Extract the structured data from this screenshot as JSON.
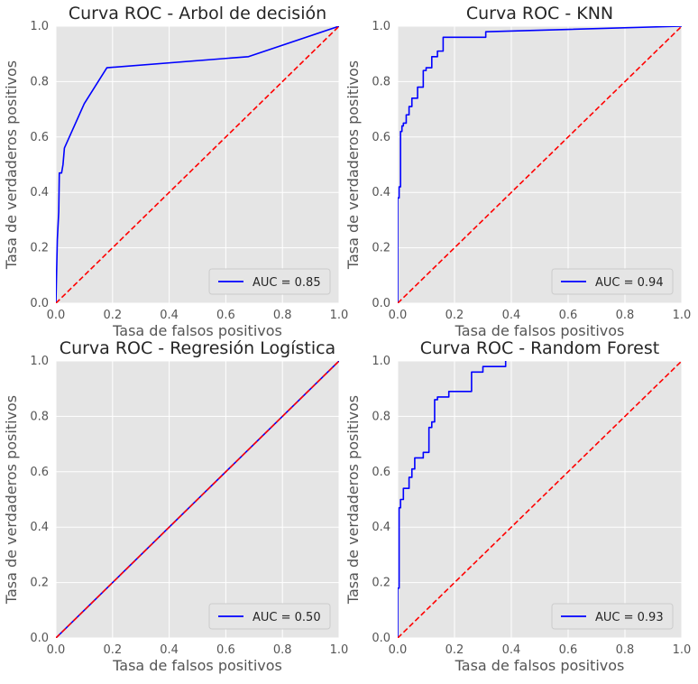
{
  "chart_data": [
    {
      "type": "line",
      "title": "Curva ROC - Arbol de decisión",
      "xlabel": "Tasa de falsos positivos",
      "ylabel": "Tasa de verdaderos positivos",
      "xlim": [
        0,
        1
      ],
      "ylim": [
        0,
        1
      ],
      "xticks": [
        "0.0",
        "0.2",
        "0.4",
        "0.6",
        "0.8",
        "1.0"
      ],
      "yticks": [
        "0.0",
        "0.2",
        "0.4",
        "0.6",
        "0.8",
        "1.0"
      ],
      "grid": true,
      "legend_position": "lower right",
      "series": [
        {
          "name": "AUC = 0.85",
          "color": "#0000ff",
          "x": [
            0,
            0.005,
            0.01,
            0.012,
            0.02,
            0.025,
            0.03,
            0.1,
            0.18,
            0.68,
            1.0
          ],
          "y": [
            0,
            0.23,
            0.33,
            0.47,
            0.47,
            0.5,
            0.56,
            0.72,
            0.85,
            0.89,
            1.0
          ]
        },
        {
          "name": "",
          "color": "#ff0000",
          "dashed": true,
          "x": [
            0,
            1
          ],
          "y": [
            0,
            1
          ]
        }
      ]
    },
    {
      "type": "line",
      "title": "Curva ROC - KNN",
      "xlabel": "Tasa de falsos positivos",
      "ylabel": "Tasa de verdaderos positivos",
      "xlim": [
        0,
        1
      ],
      "ylim": [
        0,
        1
      ],
      "xticks": [
        "0.0",
        "0.2",
        "0.4",
        "0.6",
        "0.8",
        "1.0"
      ],
      "yticks": [
        "0.0",
        "0.2",
        "0.4",
        "0.6",
        "0.8",
        "1.0"
      ],
      "grid": true,
      "legend_position": "lower right",
      "series": [
        {
          "name": "AUC = 0.94",
          "color": "#0000ff",
          "x": [
            0,
            0.0,
            0.005,
            0.005,
            0.01,
            0.01,
            0.015,
            0.015,
            0.02,
            0.02,
            0.03,
            0.03,
            0.04,
            0.04,
            0.05,
            0.05,
            0.06,
            0.06,
            0.07,
            0.07,
            0.09,
            0.09,
            0.1,
            0.1,
            0.12,
            0.12,
            0.14,
            0.14,
            0.16,
            0.16,
            0.31,
            0.31,
            1.0
          ],
          "y": [
            0,
            0.38,
            0.38,
            0.42,
            0.42,
            0.62,
            0.62,
            0.64,
            0.64,
            0.65,
            0.65,
            0.68,
            0.68,
            0.71,
            0.71,
            0.74,
            0.74,
            0.74,
            0.74,
            0.78,
            0.78,
            0.84,
            0.84,
            0.85,
            0.85,
            0.89,
            0.89,
            0.91,
            0.91,
            0.96,
            0.96,
            0.98,
            1.0
          ]
        },
        {
          "name": "",
          "color": "#ff0000",
          "dashed": true,
          "x": [
            0,
            1
          ],
          "y": [
            0,
            1
          ]
        }
      ]
    },
    {
      "type": "line",
      "title": "Curva ROC - Regresión Logística",
      "xlabel": "Tasa de falsos positivos",
      "ylabel": "Tasa de verdaderos positivos",
      "xlim": [
        0,
        1
      ],
      "ylim": [
        0,
        1
      ],
      "xticks": [
        "0.0",
        "0.2",
        "0.4",
        "0.6",
        "0.8",
        "1.0"
      ],
      "yticks": [
        "0.0",
        "0.2",
        "0.4",
        "0.6",
        "0.8",
        "1.0"
      ],
      "grid": true,
      "legend_position": "lower right",
      "series": [
        {
          "name": "AUC = 0.50",
          "color": "#0000ff",
          "x": [
            0,
            1
          ],
          "y": [
            0,
            1
          ]
        },
        {
          "name": "",
          "color": "#ff0000",
          "dashed": true,
          "x": [
            0,
            1
          ],
          "y": [
            0,
            1
          ]
        }
      ]
    },
    {
      "type": "line",
      "title": "Curva ROC - Random Forest",
      "xlabel": "Tasa de falsos positivos",
      "ylabel": "Tasa de verdaderos positivos",
      "xlim": [
        0,
        1
      ],
      "ylim": [
        0,
        1
      ],
      "xticks": [
        "0.0",
        "0.2",
        "0.4",
        "0.6",
        "0.8",
        "1.0"
      ],
      "yticks": [
        "0.0",
        "0.2",
        "0.4",
        "0.6",
        "0.8",
        "1.0"
      ],
      "grid": true,
      "legend_position": "lower right",
      "series": [
        {
          "name": "AUC = 0.93",
          "color": "#0000ff",
          "x": [
            0,
            0.0,
            0.005,
            0.005,
            0.01,
            0.01,
            0.02,
            0.02,
            0.03,
            0.03,
            0.04,
            0.04,
            0.05,
            0.05,
            0.06,
            0.06,
            0.09,
            0.09,
            0.11,
            0.11,
            0.12,
            0.12,
            0.13,
            0.13,
            0.14,
            0.14,
            0.18,
            0.18,
            0.26,
            0.26,
            0.3,
            0.3,
            0.38,
            0.38
          ],
          "y": [
            0,
            0.18,
            0.18,
            0.47,
            0.47,
            0.5,
            0.5,
            0.54,
            0.54,
            0.54,
            0.54,
            0.58,
            0.58,
            0.61,
            0.61,
            0.65,
            0.65,
            0.67,
            0.67,
            0.76,
            0.76,
            0.78,
            0.78,
            0.86,
            0.86,
            0.87,
            0.87,
            0.89,
            0.89,
            0.96,
            0.96,
            0.98,
            0.98,
            1.0
          ]
        },
        {
          "name": "",
          "color": "#ff0000",
          "dashed": true,
          "x": [
            0,
            1
          ],
          "y": [
            0,
            1
          ]
        }
      ]
    }
  ]
}
